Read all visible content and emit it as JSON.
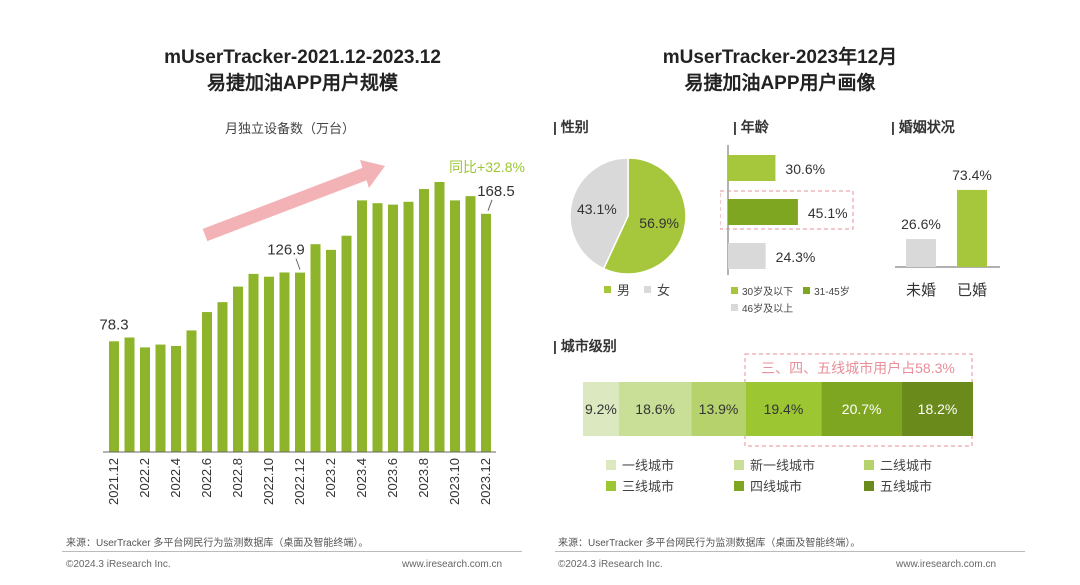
{
  "left": {
    "title_line1": "mUserTracker-2021.12-2023.12",
    "title_line2": "易捷加油APP用户规模",
    "subtitle": "月独立设备数（万台）",
    "growth_note": "同比+32.8%",
    "source": "来源：UserTracker 多平台网民行为监测数据库（桌面及智能终端）。",
    "copyright": "©2024.3 iResearch Inc.",
    "site": "www.iresearch.com.cn"
  },
  "right": {
    "title_line1": "mUserTracker-2023年12月",
    "title_line2": "易捷加油APP用户画像",
    "gender_label": "| 性别",
    "age_label": "| 年龄",
    "marital_label": "| 婚姻状况",
    "city_label": "| 城市级别",
    "city_note": "三、四、五线城市用户占58.3%",
    "source": "来源：UserTracker 多平台网民行为监测数据库（桌面及智能终端）。",
    "copyright": "©2024.3 iResearch Inc.",
    "site": "www.iresearch.com.cn"
  },
  "colors": {
    "bar": "#8db42a",
    "bar_light": "#a6c63b",
    "arrow": "#f3b3b6",
    "accent_text": "#9cc733",
    "pink_note": "#e88f9a",
    "grey": "#d9d9d9"
  },
  "chart_data": [
    {
      "type": "bar",
      "title": "易捷加油APP用户规模",
      "ylabel": "月独立设备数（万台）",
      "categories": [
        "2021.12",
        "2022.1",
        "2022.2",
        "2022.3",
        "2022.4",
        "2022.5",
        "2022.6",
        "2022.7",
        "2022.8",
        "2022.9",
        "2022.10",
        "2022.11",
        "2022.12",
        "2023.1",
        "2023.2",
        "2023.3",
        "2023.4",
        "2023.5",
        "2023.6",
        "2023.7",
        "2023.8",
        "2023.9",
        "2023.10",
        "2023.11",
        "2023.12"
      ],
      "tick_labels": [
        "2021.12",
        "2022.2",
        "2022.4",
        "2022.6",
        "2022.8",
        "2022.10",
        "2022.12",
        "2023.2",
        "2023.4",
        "2023.6",
        "2023.8",
        "2023.10",
        "2023.12"
      ],
      "values": [
        78.3,
        81,
        74,
        76,
        75,
        86,
        99,
        106,
        117,
        126,
        124,
        127,
        126.9,
        147,
        143,
        153,
        178,
        176,
        175,
        177,
        186,
        191,
        178,
        181,
        168.5
      ],
      "data_labels": [
        {
          "category": "2021.12",
          "text": "78.3"
        },
        {
          "category": "2022.12",
          "text": "126.9"
        },
        {
          "category": "2023.12",
          "text": "168.5"
        }
      ],
      "ylim": [
        0,
        200
      ]
    },
    {
      "type": "pie",
      "title": "性别",
      "labels": [
        "男",
        "女"
      ],
      "values": [
        56.9,
        43.1
      ],
      "value_labels": [
        "56.9%",
        "43.1%"
      ]
    },
    {
      "type": "bar",
      "orientation": "horizontal",
      "title": "年龄",
      "categories": [
        "30岁及以下",
        "31-45岁",
        "46岁及以上"
      ],
      "legend_labels": [
        "30岁及以下",
        "31-45岁",
        "46岁及以上"
      ],
      "values": [
        30.6,
        45.1,
        24.3
      ],
      "value_labels": [
        "30.6%",
        "45.1%",
        "24.3%"
      ]
    },
    {
      "type": "bar",
      "title": "婚姻状况",
      "categories": [
        "未婚",
        "已婚"
      ],
      "values": [
        26.6,
        73.4
      ],
      "value_labels": [
        "26.6%",
        "73.4%"
      ]
    },
    {
      "type": "bar",
      "orientation": "stacked-horizontal",
      "title": "城市级别",
      "categories": [
        "一线城市",
        "新一线城市",
        "二线城市",
        "三线城市",
        "四线城市",
        "五线城市"
      ],
      "values": [
        9.2,
        18.6,
        13.9,
        19.4,
        20.7,
        18.2
      ],
      "value_labels": [
        "9.2%",
        "18.6%",
        "13.9%",
        "19.4%",
        "20.7%",
        "18.2%"
      ],
      "segment_colors": [
        "#dce8bf",
        "#c9df97",
        "#b6d26d",
        "#9cc733",
        "#7fa620",
        "#6b8a1c"
      ]
    }
  ]
}
